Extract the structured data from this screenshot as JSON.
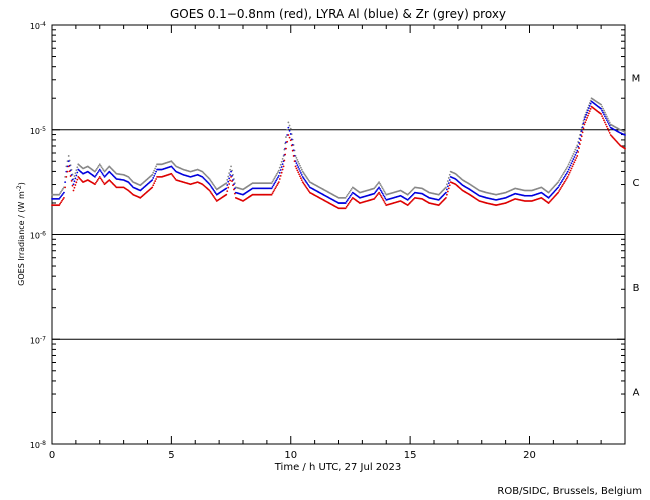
{
  "chart_data": {
    "type": "scatter",
    "title": "GOES 0.1−0.8nm (red), LYRA Al (blue) & Zr (grey) proxy",
    "xlabel": "Time / h UTC, 27 Jul 2023",
    "ylabel_main": "GOES Irradiance / (W m",
    "ylabel_sup": "-2",
    "ylabel_close": ")",
    "credit": "ROB/SIDC, Brussels, Belgium",
    "xlim": [
      0,
      24
    ],
    "x_ticks": [
      {
        "value": 0,
        "label": "0"
      },
      {
        "value": 5,
        "label": "5"
      },
      {
        "value": 10,
        "label": "10"
      },
      {
        "value": 15,
        "label": "15"
      },
      {
        "value": 20,
        "label": "20"
      }
    ],
    "y_log_range": [
      -8,
      -4
    ],
    "y_ticks": [
      {
        "exp": -4,
        "base": "10",
        "sup": "-4"
      },
      {
        "exp": -5,
        "base": "10",
        "sup": "-5"
      },
      {
        "exp": -6,
        "base": "10",
        "sup": "-6"
      },
      {
        "exp": -7,
        "base": "10",
        "sup": "-7"
      },
      {
        "exp": -8,
        "base": "10",
        "sup": "-8"
      }
    ],
    "class_lines": [
      -5,
      -6,
      -7
    ],
    "class_labels": [
      {
        "label": "M",
        "exp": -4.5
      },
      {
        "label": "C",
        "exp": -5.5
      },
      {
        "label": "B",
        "exp": -6.5
      },
      {
        "label": "A",
        "exp": -7.5
      }
    ],
    "goes_series": {
      "name": "red",
      "color": "#dd0000",
      "points": [
        [
          0,
          -5.72
        ],
        [
          0.3,
          -5.72
        ],
        [
          0.5,
          -5.65
        ],
        [
          0.6,
          -5.45
        ],
        [
          0.7,
          -5.35
        ],
        [
          0.9,
          -5.58
        ],
        [
          1.1,
          -5.45
        ],
        [
          1.3,
          -5.5
        ],
        [
          1.5,
          -5.48
        ],
        [
          1.8,
          -5.52
        ],
        [
          2.0,
          -5.45
        ],
        [
          2.2,
          -5.52
        ],
        [
          2.4,
          -5.48
        ],
        [
          2.7,
          -5.55
        ],
        [
          3.0,
          -5.55
        ],
        [
          3.2,
          -5.58
        ],
        [
          3.4,
          -5.62
        ],
        [
          3.7,
          -5.65
        ],
        [
          4.2,
          -5.55
        ],
        [
          4.4,
          -5.45
        ],
        [
          4.6,
          -5.45
        ],
        [
          5.0,
          -5.42
        ],
        [
          5.2,
          -5.48
        ],
        [
          5.5,
          -5.5
        ],
        [
          5.8,
          -5.52
        ],
        [
          6.1,
          -5.5
        ],
        [
          6.3,
          -5.52
        ],
        [
          6.6,
          -5.58
        ],
        [
          6.9,
          -5.68
        ],
        [
          7.3,
          -5.62
        ],
        [
          7.5,
          -5.45
        ],
        [
          7.7,
          -5.65
        ],
        [
          8.0,
          -5.68
        ],
        [
          8.4,
          -5.62
        ],
        [
          8.8,
          -5.62
        ],
        [
          9.2,
          -5.62
        ],
        [
          9.5,
          -5.5
        ],
        [
          9.7,
          -5.35
        ],
        [
          9.8,
          -5.18
        ],
        [
          9.9,
          -5.05
        ],
        [
          10.0,
          -5.1
        ],
        [
          10.2,
          -5.35
        ],
        [
          10.5,
          -5.5
        ],
        [
          10.8,
          -5.6
        ],
        [
          11.2,
          -5.65
        ],
        [
          11.6,
          -5.7
        ],
        [
          12.0,
          -5.75
        ],
        [
          12.3,
          -5.75
        ],
        [
          12.6,
          -5.65
        ],
        [
          12.9,
          -5.7
        ],
        [
          13.2,
          -5.68
        ],
        [
          13.5,
          -5.66
        ],
        [
          13.7,
          -5.6
        ],
        [
          14.0,
          -5.72
        ],
        [
          14.3,
          -5.7
        ],
        [
          14.6,
          -5.68
        ],
        [
          14.9,
          -5.72
        ],
        [
          15.2,
          -5.65
        ],
        [
          15.5,
          -5.66
        ],
        [
          15.8,
          -5.7
        ],
        [
          16.2,
          -5.72
        ],
        [
          16.5,
          -5.65
        ],
        [
          16.7,
          -5.5
        ],
        [
          16.9,
          -5.52
        ],
        [
          17.2,
          -5.58
        ],
        [
          17.5,
          -5.62
        ],
        [
          17.9,
          -5.68
        ],
        [
          18.2,
          -5.7
        ],
        [
          18.6,
          -5.72
        ],
        [
          19.0,
          -5.7
        ],
        [
          19.4,
          -5.66
        ],
        [
          19.8,
          -5.68
        ],
        [
          20.1,
          -5.68
        ],
        [
          20.5,
          -5.65
        ],
        [
          20.8,
          -5.7
        ],
        [
          21.2,
          -5.6
        ],
        [
          21.6,
          -5.45
        ],
        [
          22.0,
          -5.25
        ],
        [
          22.3,
          -4.95
        ],
        [
          22.6,
          -4.78
        ],
        [
          23.0,
          -4.85
        ],
        [
          23.4,
          -5.05
        ],
        [
          23.8,
          -5.15
        ],
        [
          24,
          -5.18
        ]
      ]
    },
    "lyra_al_series": {
      "name": "blue",
      "color": "#0000dd",
      "points": [
        [
          0,
          -5.66
        ],
        [
          0.3,
          -5.66
        ],
        [
          0.5,
          -5.6
        ],
        [
          0.6,
          -5.4
        ],
        [
          0.7,
          -5.3
        ],
        [
          0.9,
          -5.52
        ],
        [
          1.1,
          -5.38
        ],
        [
          1.3,
          -5.42
        ],
        [
          1.5,
          -5.4
        ],
        [
          1.8,
          -5.45
        ],
        [
          2.0,
          -5.38
        ],
        [
          2.2,
          -5.45
        ],
        [
          2.4,
          -5.4
        ],
        [
          2.7,
          -5.47
        ],
        [
          3.0,
          -5.48
        ],
        [
          3.2,
          -5.5
        ],
        [
          3.4,
          -5.55
        ],
        [
          3.7,
          -5.58
        ],
        [
          4.2,
          -5.48
        ],
        [
          4.4,
          -5.38
        ],
        [
          4.6,
          -5.38
        ],
        [
          5.0,
          -5.35
        ],
        [
          5.2,
          -5.4
        ],
        [
          5.5,
          -5.43
        ],
        [
          5.8,
          -5.45
        ],
        [
          6.1,
          -5.43
        ],
        [
          6.3,
          -5.45
        ],
        [
          6.6,
          -5.52
        ],
        [
          6.9,
          -5.62
        ],
        [
          7.3,
          -5.56
        ],
        [
          7.5,
          -5.4
        ],
        [
          7.7,
          -5.6
        ],
        [
          8.0,
          -5.62
        ],
        [
          8.4,
          -5.56
        ],
        [
          8.8,
          -5.56
        ],
        [
          9.2,
          -5.56
        ],
        [
          9.5,
          -5.44
        ],
        [
          9.7,
          -5.3
        ],
        [
          9.8,
          -5.12
        ],
        [
          9.9,
          -4.98
        ],
        [
          10.0,
          -5.04
        ],
        [
          10.2,
          -5.3
        ],
        [
          10.5,
          -5.45
        ],
        [
          10.8,
          -5.55
        ],
        [
          11.2,
          -5.6
        ],
        [
          11.6,
          -5.65
        ],
        [
          12.0,
          -5.7
        ],
        [
          12.3,
          -5.7
        ],
        [
          12.6,
          -5.6
        ],
        [
          12.9,
          -5.65
        ],
        [
          13.2,
          -5.63
        ],
        [
          13.5,
          -5.61
        ],
        [
          13.7,
          -5.55
        ],
        [
          14.0,
          -5.67
        ],
        [
          14.3,
          -5.65
        ],
        [
          14.6,
          -5.63
        ],
        [
          14.9,
          -5.67
        ],
        [
          15.2,
          -5.6
        ],
        [
          15.5,
          -5.61
        ],
        [
          15.8,
          -5.65
        ],
        [
          16.2,
          -5.67
        ],
        [
          16.5,
          -5.6
        ],
        [
          16.7,
          -5.45
        ],
        [
          16.9,
          -5.47
        ],
        [
          17.2,
          -5.53
        ],
        [
          17.5,
          -5.57
        ],
        [
          17.9,
          -5.63
        ],
        [
          18.2,
          -5.65
        ],
        [
          18.6,
          -5.67
        ],
        [
          19.0,
          -5.65
        ],
        [
          19.4,
          -5.61
        ],
        [
          19.8,
          -5.63
        ],
        [
          20.1,
          -5.63
        ],
        [
          20.5,
          -5.6
        ],
        [
          20.8,
          -5.65
        ],
        [
          21.2,
          -5.55
        ],
        [
          21.6,
          -5.4
        ],
        [
          22.0,
          -5.2
        ],
        [
          22.3,
          -4.9
        ],
        [
          22.6,
          -4.73
        ],
        [
          23.0,
          -4.8
        ],
        [
          23.4,
          -4.98
        ],
        [
          23.8,
          -5.03
        ],
        [
          24,
          -5.05
        ]
      ]
    },
    "lyra_zr_series": {
      "name": "grey",
      "color": "#888888",
      "points": [
        [
          0,
          -5.62
        ],
        [
          0.3,
          -5.62
        ],
        [
          0.5,
          -5.55
        ],
        [
          0.6,
          -5.35
        ],
        [
          0.7,
          -5.25
        ],
        [
          0.9,
          -5.47
        ],
        [
          1.1,
          -5.33
        ],
        [
          1.3,
          -5.37
        ],
        [
          1.5,
          -5.35
        ],
        [
          1.8,
          -5.4
        ],
        [
          2.0,
          -5.33
        ],
        [
          2.2,
          -5.4
        ],
        [
          2.4,
          -5.35
        ],
        [
          2.7,
          -5.42
        ],
        [
          3.0,
          -5.43
        ],
        [
          3.2,
          -5.45
        ],
        [
          3.4,
          -5.5
        ],
        [
          3.7,
          -5.53
        ],
        [
          4.2,
          -5.43
        ],
        [
          4.4,
          -5.33
        ],
        [
          4.6,
          -5.33
        ],
        [
          5.0,
          -5.3
        ],
        [
          5.2,
          -5.35
        ],
        [
          5.5,
          -5.38
        ],
        [
          5.8,
          -5.4
        ],
        [
          6.1,
          -5.38
        ],
        [
          6.3,
          -5.4
        ],
        [
          6.6,
          -5.47
        ],
        [
          6.9,
          -5.57
        ],
        [
          7.3,
          -5.51
        ],
        [
          7.5,
          -5.35
        ],
        [
          7.7,
          -5.55
        ],
        [
          8.0,
          -5.57
        ],
        [
          8.4,
          -5.51
        ],
        [
          8.8,
          -5.51
        ],
        [
          9.2,
          -5.51
        ],
        [
          9.5,
          -5.39
        ],
        [
          9.7,
          -5.25
        ],
        [
          9.8,
          -5.07
        ],
        [
          9.9,
          -4.93
        ],
        [
          10.0,
          -4.99
        ],
        [
          10.2,
          -5.25
        ],
        [
          10.5,
          -5.4
        ],
        [
          10.8,
          -5.5
        ],
        [
          11.2,
          -5.55
        ],
        [
          11.6,
          -5.6
        ],
        [
          12.0,
          -5.65
        ],
        [
          12.3,
          -5.65
        ],
        [
          12.6,
          -5.55
        ],
        [
          12.9,
          -5.6
        ],
        [
          13.2,
          -5.58
        ],
        [
          13.5,
          -5.56
        ],
        [
          13.7,
          -5.5
        ],
        [
          14.0,
          -5.62
        ],
        [
          14.3,
          -5.6
        ],
        [
          14.6,
          -5.58
        ],
        [
          14.9,
          -5.62
        ],
        [
          15.2,
          -5.55
        ],
        [
          15.5,
          -5.56
        ],
        [
          15.8,
          -5.6
        ],
        [
          16.2,
          -5.62
        ],
        [
          16.5,
          -5.55
        ],
        [
          16.7,
          -5.4
        ],
        [
          16.9,
          -5.42
        ],
        [
          17.2,
          -5.48
        ],
        [
          17.5,
          -5.52
        ],
        [
          17.9,
          -5.58
        ],
        [
          18.2,
          -5.6
        ],
        [
          18.6,
          -5.62
        ],
        [
          19.0,
          -5.6
        ],
        [
          19.4,
          -5.56
        ],
        [
          19.8,
          -5.58
        ],
        [
          20.1,
          -5.58
        ],
        [
          20.5,
          -5.55
        ],
        [
          20.8,
          -5.6
        ],
        [
          21.2,
          -5.5
        ],
        [
          21.6,
          -5.35
        ],
        [
          22.0,
          -5.15
        ],
        [
          22.3,
          -4.88
        ],
        [
          22.6,
          -4.7
        ],
        [
          23.0,
          -4.76
        ],
        [
          23.4,
          -4.95
        ],
        [
          23.8,
          -5.0
        ],
        [
          24,
          -5.02
        ]
      ]
    }
  }
}
